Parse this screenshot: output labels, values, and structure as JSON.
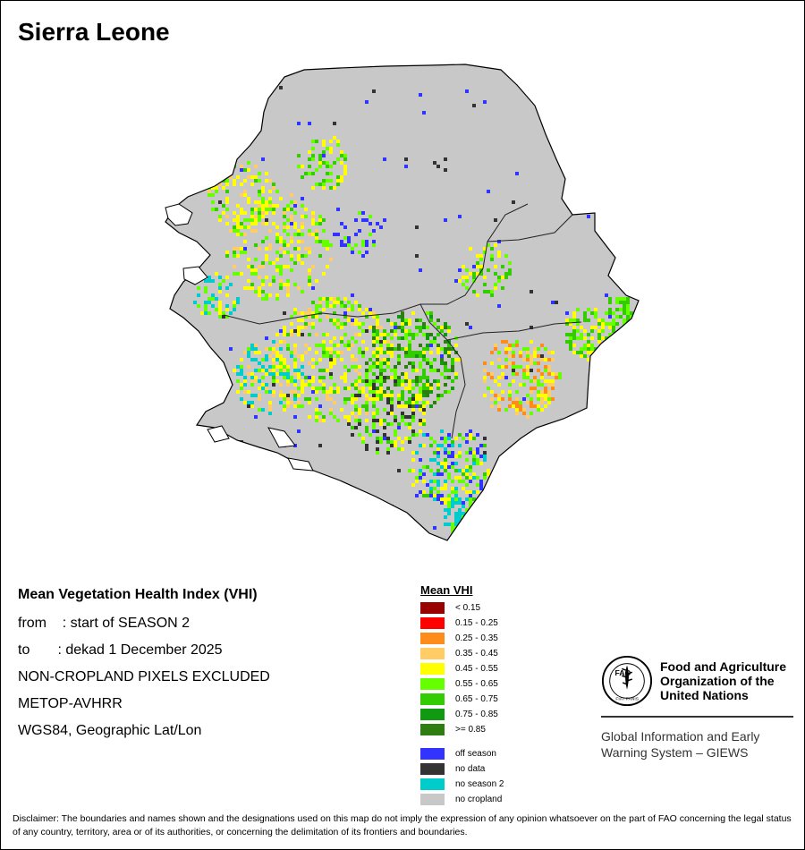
{
  "title": "Sierra Leone",
  "info": {
    "heading": "Mean Vegetation Health Index (VHI)",
    "from": "from    : start of SEASON 2",
    "to": "to       : dekad 1 December 2025",
    "exclusion": "NON-CROPLAND PIXELS EXCLUDED",
    "sensor": "METOP-AVHRR",
    "projection": "WGS84, Geographic Lat/Lon"
  },
  "legend": {
    "title": "Mean VHI",
    "classes": [
      {
        "label": "< 0.15",
        "color": "#990000"
      },
      {
        "label": "0.15 - 0.25",
        "color": "#ff0000"
      },
      {
        "label": "0.25 - 0.35",
        "color": "#ff8c1a"
      },
      {
        "label": "0.35 - 0.45",
        "color": "#ffcc66"
      },
      {
        "label": "0.45 - 0.55",
        "color": "#ffff00"
      },
      {
        "label": "0.55 - 0.65",
        "color": "#66ff00"
      },
      {
        "label": "0.65 - 0.75",
        "color": "#33cc00"
      },
      {
        "label": "0.75 - 0.85",
        "color": "#119911"
      },
      {
        "label": ">= 0.85",
        "color": "#2e7d11"
      }
    ],
    "special": [
      {
        "label": "off season",
        "color": "#3333ff"
      },
      {
        "label": "no data",
        "color": "#333333"
      },
      {
        "label": "no season 2",
        "color": "#00cccc"
      },
      {
        "label": "no cropland",
        "color": "#c8c8c8"
      }
    ]
  },
  "organization": {
    "emblem_text": "FAO",
    "emblem_motto": "FIAT PANIS",
    "name_line1": "Food and Agriculture",
    "name_line2": "Organization of the",
    "name_line3": "United Nations",
    "system_line1": "Global Information and Early",
    "system_line2": "Warning System – GIEWS"
  },
  "disclaimer": "Disclaimer: The boundaries and names shown and the designations used on this map do not imply the expression of any opinion whatsoever on the part of FAO concerning the legal status of any country, territory, area or of its authorities, or concerning the delimitation of its frontiers and boundaries."
}
